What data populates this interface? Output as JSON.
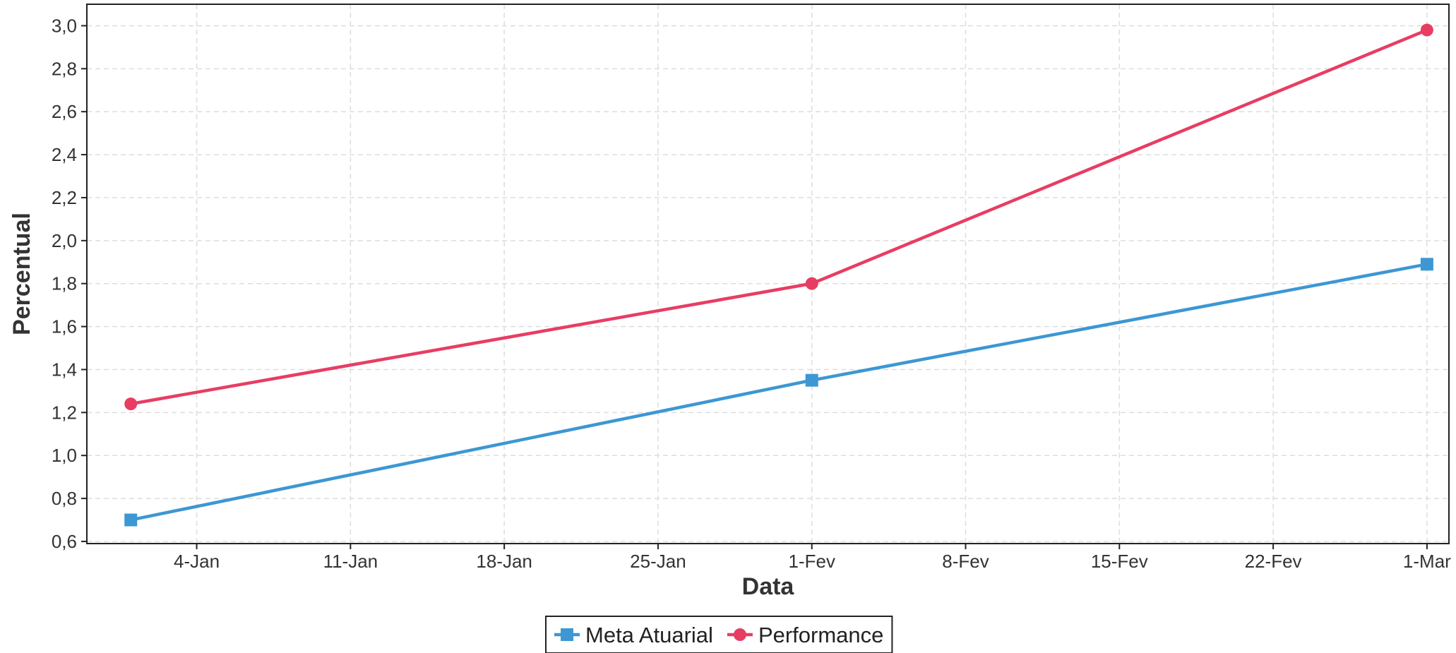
{
  "chart_data": {
    "type": "line",
    "xlabel": "Data",
    "ylabel": "Percentual",
    "x_ticks": [
      {
        "date": "2021-01-04",
        "label": "4-Jan"
      },
      {
        "date": "2021-01-11",
        "label": "11-Jan"
      },
      {
        "date": "2021-01-18",
        "label": "18-Jan"
      },
      {
        "date": "2021-01-25",
        "label": "25-Jan"
      },
      {
        "date": "2021-02-01",
        "label": "1-Fev"
      },
      {
        "date": "2021-02-08",
        "label": "8-Fev"
      },
      {
        "date": "2021-02-15",
        "label": "15-Fev"
      },
      {
        "date": "2021-02-22",
        "label": "22-Fev"
      },
      {
        "date": "2021-03-01",
        "label": "1-Mar"
      }
    ],
    "xlim": [
      "2020-12-30",
      "2021-03-02"
    ],
    "ylim": [
      0.59,
      3.1
    ],
    "y_ticks": [
      0.6,
      0.8,
      1.0,
      1.2,
      1.4,
      1.6,
      1.8,
      2.0,
      2.2,
      2.4,
      2.6,
      2.8,
      3.0
    ],
    "y_tick_labels": [
      "0,6",
      "0,8",
      "1,0",
      "1,2",
      "1,4",
      "1,6",
      "1,8",
      "2,0",
      "2,2",
      "2,4",
      "2,6",
      "2,8",
      "3,0"
    ],
    "grid": true,
    "legend_position": "bottom-center",
    "series": [
      {
        "name": "Meta Atuarial",
        "color": "#3d97d3",
        "marker": "square",
        "points": [
          {
            "x": "2021-01-01",
            "y": 0.7
          },
          {
            "x": "2021-02-01",
            "y": 1.35
          },
          {
            "x": "2021-03-01",
            "y": 1.89
          }
        ]
      },
      {
        "name": "Performance",
        "color": "#e83d63",
        "marker": "circle",
        "points": [
          {
            "x": "2021-01-01",
            "y": 1.24
          },
          {
            "x": "2021-02-01",
            "y": 1.8
          },
          {
            "x": "2021-03-01",
            "y": 2.98
          }
        ]
      }
    ]
  }
}
